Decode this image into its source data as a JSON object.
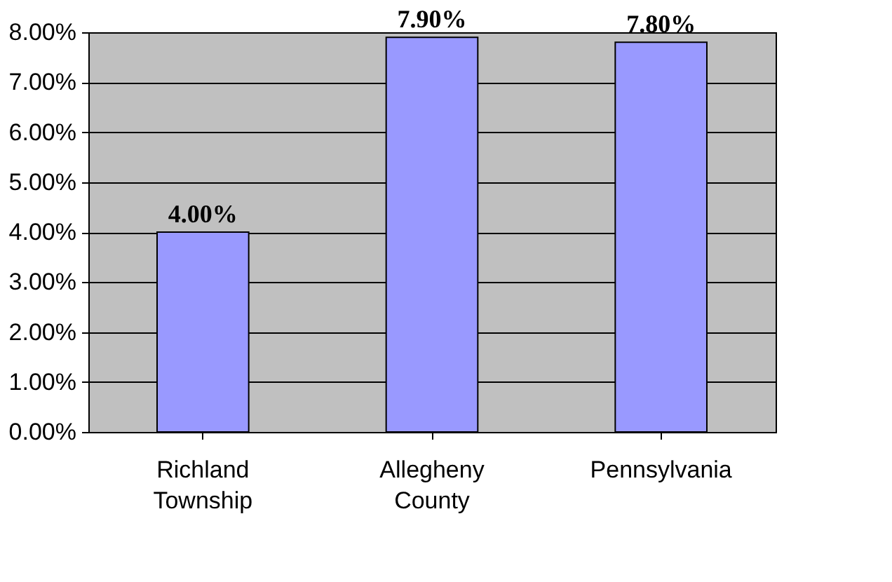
{
  "chart_data": {
    "type": "bar",
    "categories": [
      "Richland Township",
      "Allegheny County",
      "Pennsylvania"
    ],
    "values": [
      4.0,
      7.9,
      7.8
    ],
    "value_labels": [
      "4.00%",
      "7.90%",
      "7.80%"
    ],
    "color": "#9999ff",
    "ylim": [
      0,
      8
    ],
    "yticks": [
      {
        "value": 0,
        "label": "0.00%"
      },
      {
        "value": 1,
        "label": "1.00%"
      },
      {
        "value": 2,
        "label": "2.00%"
      },
      {
        "value": 3,
        "label": "3.00%"
      },
      {
        "value": 4,
        "label": "4.00%"
      },
      {
        "value": 5,
        "label": "5.00%"
      },
      {
        "value": 6,
        "label": "6.00%"
      },
      {
        "value": 7,
        "label": "7.00%"
      },
      {
        "value": 8,
        "label": "8.00%"
      }
    ],
    "grid": "y"
  }
}
